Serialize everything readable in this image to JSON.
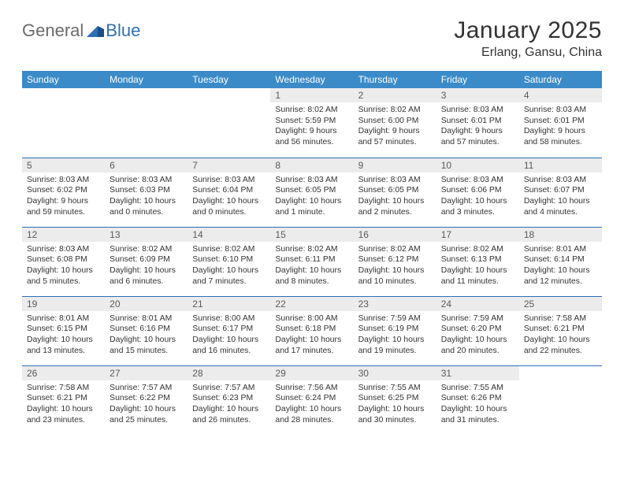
{
  "logo": {
    "word1": "General",
    "word2": "Blue"
  },
  "title": "January 2025",
  "location": "Erlang, Gansu, China",
  "colors": {
    "header_bg": "#3b8bc9",
    "header_fg": "#ffffff",
    "row_divider": "#2f6fb3",
    "daynum_bg": "#ececec",
    "daynum_fg": "#5a5a5a",
    "text": "#333333",
    "logo_gray": "#6b6b6b",
    "logo_blue": "#2f6fb3",
    "page_bg": "#ffffff"
  },
  "fonts": {
    "title_size_pt": 22,
    "location_size_pt": 12,
    "header_size_pt": 9,
    "cell_size_pt": 8,
    "daynum_size_pt": 9
  },
  "weekdays": [
    "Sunday",
    "Monday",
    "Tuesday",
    "Wednesday",
    "Thursday",
    "Friday",
    "Saturday"
  ],
  "weeks": [
    [
      null,
      null,
      null,
      {
        "n": "1",
        "sunrise": "8:02 AM",
        "sunset": "5:59 PM",
        "daylight": "9 hours and 56 minutes."
      },
      {
        "n": "2",
        "sunrise": "8:02 AM",
        "sunset": "6:00 PM",
        "daylight": "9 hours and 57 minutes."
      },
      {
        "n": "3",
        "sunrise": "8:03 AM",
        "sunset": "6:01 PM",
        "daylight": "9 hours and 57 minutes."
      },
      {
        "n": "4",
        "sunrise": "8:03 AM",
        "sunset": "6:01 PM",
        "daylight": "9 hours and 58 minutes."
      }
    ],
    [
      {
        "n": "5",
        "sunrise": "8:03 AM",
        "sunset": "6:02 PM",
        "daylight": "9 hours and 59 minutes."
      },
      {
        "n": "6",
        "sunrise": "8:03 AM",
        "sunset": "6:03 PM",
        "daylight": "10 hours and 0 minutes."
      },
      {
        "n": "7",
        "sunrise": "8:03 AM",
        "sunset": "6:04 PM",
        "daylight": "10 hours and 0 minutes."
      },
      {
        "n": "8",
        "sunrise": "8:03 AM",
        "sunset": "6:05 PM",
        "daylight": "10 hours and 1 minute."
      },
      {
        "n": "9",
        "sunrise": "8:03 AM",
        "sunset": "6:05 PM",
        "daylight": "10 hours and 2 minutes."
      },
      {
        "n": "10",
        "sunrise": "8:03 AM",
        "sunset": "6:06 PM",
        "daylight": "10 hours and 3 minutes."
      },
      {
        "n": "11",
        "sunrise": "8:03 AM",
        "sunset": "6:07 PM",
        "daylight": "10 hours and 4 minutes."
      }
    ],
    [
      {
        "n": "12",
        "sunrise": "8:03 AM",
        "sunset": "6:08 PM",
        "daylight": "10 hours and 5 minutes."
      },
      {
        "n": "13",
        "sunrise": "8:02 AM",
        "sunset": "6:09 PM",
        "daylight": "10 hours and 6 minutes."
      },
      {
        "n": "14",
        "sunrise": "8:02 AM",
        "sunset": "6:10 PM",
        "daylight": "10 hours and 7 minutes."
      },
      {
        "n": "15",
        "sunrise": "8:02 AM",
        "sunset": "6:11 PM",
        "daylight": "10 hours and 8 minutes."
      },
      {
        "n": "16",
        "sunrise": "8:02 AM",
        "sunset": "6:12 PM",
        "daylight": "10 hours and 10 minutes."
      },
      {
        "n": "17",
        "sunrise": "8:02 AM",
        "sunset": "6:13 PM",
        "daylight": "10 hours and 11 minutes."
      },
      {
        "n": "18",
        "sunrise": "8:01 AM",
        "sunset": "6:14 PM",
        "daylight": "10 hours and 12 minutes."
      }
    ],
    [
      {
        "n": "19",
        "sunrise": "8:01 AM",
        "sunset": "6:15 PM",
        "daylight": "10 hours and 13 minutes."
      },
      {
        "n": "20",
        "sunrise": "8:01 AM",
        "sunset": "6:16 PM",
        "daylight": "10 hours and 15 minutes."
      },
      {
        "n": "21",
        "sunrise": "8:00 AM",
        "sunset": "6:17 PM",
        "daylight": "10 hours and 16 minutes."
      },
      {
        "n": "22",
        "sunrise": "8:00 AM",
        "sunset": "6:18 PM",
        "daylight": "10 hours and 17 minutes."
      },
      {
        "n": "23",
        "sunrise": "7:59 AM",
        "sunset": "6:19 PM",
        "daylight": "10 hours and 19 minutes."
      },
      {
        "n": "24",
        "sunrise": "7:59 AM",
        "sunset": "6:20 PM",
        "daylight": "10 hours and 20 minutes."
      },
      {
        "n": "25",
        "sunrise": "7:58 AM",
        "sunset": "6:21 PM",
        "daylight": "10 hours and 22 minutes."
      }
    ],
    [
      {
        "n": "26",
        "sunrise": "7:58 AM",
        "sunset": "6:21 PM",
        "daylight": "10 hours and 23 minutes."
      },
      {
        "n": "27",
        "sunrise": "7:57 AM",
        "sunset": "6:22 PM",
        "daylight": "10 hours and 25 minutes."
      },
      {
        "n": "28",
        "sunrise": "7:57 AM",
        "sunset": "6:23 PM",
        "daylight": "10 hours and 26 minutes."
      },
      {
        "n": "29",
        "sunrise": "7:56 AM",
        "sunset": "6:24 PM",
        "daylight": "10 hours and 28 minutes."
      },
      {
        "n": "30",
        "sunrise": "7:55 AM",
        "sunset": "6:25 PM",
        "daylight": "10 hours and 30 minutes."
      },
      {
        "n": "31",
        "sunrise": "7:55 AM",
        "sunset": "6:26 PM",
        "daylight": "10 hours and 31 minutes."
      },
      null
    ]
  ],
  "labels": {
    "sunrise": "Sunrise:",
    "sunset": "Sunset:",
    "daylight": "Daylight:"
  }
}
